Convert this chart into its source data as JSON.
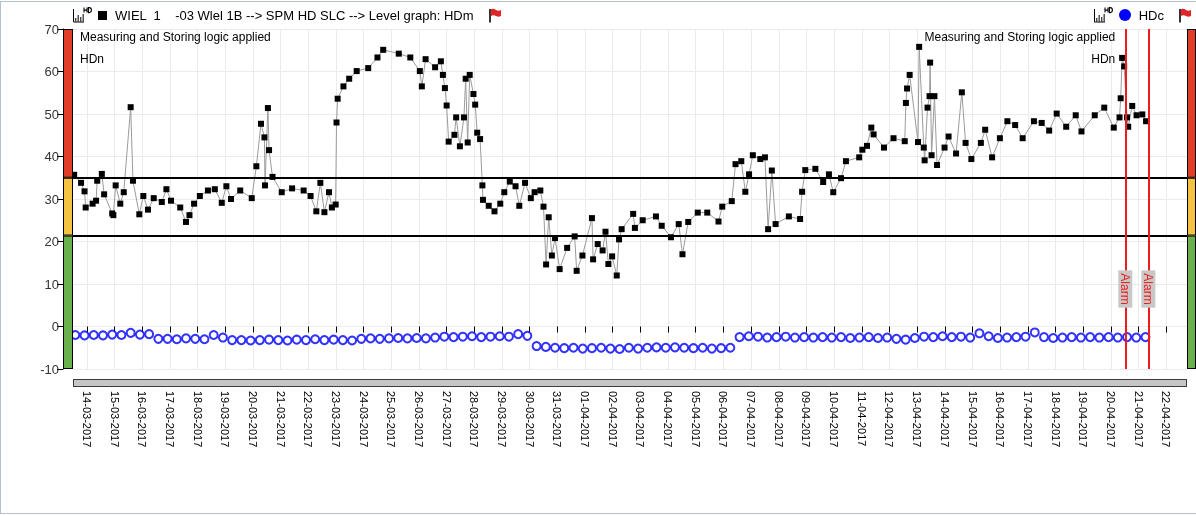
{
  "chart_data": {
    "type": "line",
    "series": [
      {
        "name": "WIEL  1    -03 Wlel 1B --> SPM HD SLC --> Level graph: HDm",
        "color": "#000000",
        "marker": "square",
        "x": [
          "2017-03-13T13:00",
          "2017-03-13T19:00",
          "2017-03-13T22:00",
          "2017-03-13T23:00",
          "2017-03-14T05:00",
          "2017-03-14T08:00",
          "2017-03-14T09:00",
          "2017-03-14T13:00",
          "2017-03-14T15:00",
          "2017-03-14T22:00",
          "2017-03-14T23:00",
          "2017-03-15T01:00",
          "2017-03-15T05:00",
          "2017-03-15T08:00",
          "2017-03-15T14:00",
          "2017-03-15T16:00",
          "2017-03-15T21:30",
          "2017-03-16T01:00",
          "2017-03-16T05:00",
          "2017-03-16T10:00",
          "2017-03-16T17:00",
          "2017-03-16T21:00",
          "2017-03-17T01:00",
          "2017-03-17T09:00",
          "2017-03-17T14:00",
          "2017-03-17T17:00",
          "2017-03-17T21:00",
          "2017-03-18T02:00",
          "2017-03-18T09:00",
          "2017-03-18T15:00",
          "2017-03-18T21:00",
          "2017-03-19T01:00",
          "2017-03-19T05:00",
          "2017-03-19T13:00",
          "2017-03-19T23:00",
          "2017-03-20T03:00",
          "2017-03-20T07:00",
          "2017-03-20T10:00",
          "2017-03-20T10:30",
          "2017-03-20T13:00",
          "2017-03-20T14:00",
          "2017-03-20T17:00",
          "2017-03-21T01:00",
          "2017-03-21T10:00",
          "2017-03-21T20:00",
          "2017-03-22T02:00",
          "2017-03-22T07:00",
          "2017-03-22T10:30",
          "2017-03-22T14:00",
          "2017-03-22T18:00",
          "2017-03-22T20:30",
          "2017-03-22T23:45",
          "2017-03-23T00:30",
          "2017-03-23T01:30",
          "2017-03-23T06:30",
          "2017-03-23T11:30",
          "2017-03-23T18:00",
          "2017-03-24T04:00",
          "2017-03-24T12:00",
          "2017-03-24T17:00",
          "2017-03-25T06:30",
          "2017-03-25T16:30",
          "2017-03-26T00:45",
          "2017-03-26T02:30",
          "2017-03-26T05:45",
          "2017-03-26T14:00",
          "2017-03-26T19:00",
          "2017-03-26T20:45",
          "2017-03-26T22:30",
          "2017-03-27T00:00",
          "2017-03-27T01:45",
          "2017-03-27T06:45",
          "2017-03-27T08:15",
          "2017-03-27T11:30",
          "2017-03-27T15:00",
          "2017-03-27T16:30",
          "2017-03-27T18:15",
          "2017-03-27T20:00",
          "2017-03-27T23:15",
          "2017-03-28T00:45",
          "2017-03-28T02:30",
          "2017-03-28T05:00",
          "2017-03-28T07:00",
          "2017-03-28T07:30",
          "2017-03-28T12:30",
          "2017-03-28T17:30",
          "2017-03-28T22:30",
          "2017-03-29T02:00",
          "2017-03-29T06:45",
          "2017-03-29T11:45",
          "2017-03-29T15:00",
          "2017-03-29T20:00",
          "2017-03-30T01:00",
          "2017-03-30T04:15",
          "2017-03-30T09:15",
          "2017-03-30T12:00",
          "2017-03-30T14:15",
          "2017-03-30T16:30",
          "2017-03-30T19:15",
          "2017-03-30T22:00",
          "2017-03-31T02:00",
          "2017-03-31T08:30",
          "2017-03-31T15:00",
          "2017-03-31T16:45",
          "2017-03-31T21:45",
          "2017-04-01T06:00",
          "2017-04-01T07:00",
          "2017-04-01T11:00",
          "2017-04-01T15:15",
          "2017-04-01T17:45",
          "2017-04-01T20:15",
          "2017-04-01T23:30",
          "2017-04-02T03:30",
          "2017-04-02T05:30",
          "2017-04-02T07:45",
          "2017-04-02T17:45",
          "2017-04-02T19:15",
          "2017-04-03T02:00",
          "2017-04-03T13:30",
          "2017-04-03T18:30",
          "2017-04-04T02:30",
          "2017-04-04T09:15",
          "2017-04-04T12:30",
          "2017-04-04T17:30",
          "2017-04-05T01:45",
          "2017-04-05T10:00",
          "2017-04-05T19:45",
          "2017-04-05T23:00",
          "2017-04-06T07:15",
          "2017-04-06T10:30",
          "2017-04-06T15:30",
          "2017-04-06T19:00",
          "2017-04-06T22:15",
          "2017-04-07T01:30",
          "2017-04-07T08:00",
          "2017-04-07T12:00",
          "2017-04-07T14:45",
          "2017-04-07T18:00",
          "2017-04-07T21:15",
          "2017-04-08T08:45",
          "2017-04-08T18:30",
          "2017-04-08T20:15",
          "2017-04-08T23:00",
          "2017-04-09T07:45",
          "2017-04-09T14:30",
          "2017-04-09T19:30",
          "2017-04-09T23:15",
          "2017-04-10T06:00",
          "2017-04-10T10:15",
          "2017-04-10T21:45",
          "2017-04-11T00:30",
          "2017-04-11T04:30",
          "2017-04-11T08:15",
          "2017-04-11T10:15",
          "2017-04-11T19:15",
          "2017-04-12T03:30",
          "2017-04-12T13:15",
          "2017-04-12T14:15",
          "2017-04-12T15:15",
          "2017-04-12T17:30",
          "2017-04-13T00:45",
          "2017-04-13T01:45",
          "2017-04-13T05:45",
          "2017-04-13T06:30",
          "2017-04-13T09:00",
          "2017-04-13T10:45",
          "2017-04-13T11:15",
          "2017-04-13T12:30",
          "2017-04-13T15:00",
          "2017-04-13T17:15",
          "2017-04-13T23:45",
          "2017-04-14T03:15",
          "2017-04-14T09:45",
          "2017-04-14T14:45",
          "2017-04-14T18:00",
          "2017-04-14T23:00",
          "2017-04-15T07:15",
          "2017-04-15T11:00",
          "2017-04-15T17:00",
          "2017-04-15T23:45",
          "2017-04-16T06:15",
          "2017-04-16T13:00",
          "2017-04-16T19:30",
          "2017-04-17T05:15",
          "2017-04-17T12:00",
          "2017-04-17T18:30",
          "2017-04-18T01:00",
          "2017-04-18T09:15",
          "2017-04-18T17:30",
          "2017-04-18T22:30",
          "2017-04-19T10:00",
          "2017-04-19T18:15",
          "2017-04-20T02:30",
          "2017-04-20T07:30",
          "2017-04-20T08:30",
          "2017-04-20T09:45",
          "2017-04-20T11:30",
          "2017-04-20T14:00",
          "2017-04-20T15:00",
          "2017-04-20T18:30",
          "2017-04-20T22:15",
          "2017-04-21T03:15",
          "2017-04-21T06:30"
        ],
        "values": [
          35.7,
          33.8,
          31.8,
          28.0,
          28.9,
          29.6,
          34.3,
          35.9,
          31.1,
          26.6,
          26.2,
          33.2,
          28.9,
          31.6,
          51.6,
          34.3,
          26.4,
          30.7,
          27.5,
          30.2,
          29.3,
          32.3,
          29.6,
          28.0,
          24.6,
          26.2,
          28.9,
          30.7,
          32.0,
          32.3,
          29.1,
          33.0,
          30.0,
          32.0,
          30.2,
          37.7,
          47.7,
          44.5,
          33.2,
          51.4,
          41.5,
          35.2,
          31.6,
          32.5,
          32.0,
          30.7,
          27.1,
          33.8,
          26.9,
          31.6,
          28.0,
          28.7,
          48.0,
          53.6,
          56.5,
          58.3,
          60.1,
          60.8,
          63.3,
          65.1,
          64.2,
          63.3,
          60.1,
          56.5,
          62.9,
          61.0,
          62.4,
          59.2,
          56.1,
          52.0,
          43.5,
          45.1,
          49.2,
          42.4,
          49.2,
          58.3,
          43.3,
          59.2,
          54.7,
          52.2,
          45.6,
          44.1,
          33.2,
          29.8,
          28.4,
          27.1,
          28.9,
          31.6,
          34.1,
          33.0,
          28.4,
          33.8,
          30.2,
          31.6,
          32.0,
          28.2,
          14.6,
          25.7,
          16.7,
          20.8,
          13.5,
          18.5,
          21.2,
          13.1,
          16.7,
          25.5,
          15.8,
          19.4,
          17.9,
          22.3,
          14.7,
          16.5,
          12.0,
          20.5,
          22.9,
          26.5,
          23.2,
          25.0,
          25.9,
          23.7,
          21.0,
          24.1,
          17.0,
          24.6,
          26.8,
          26.8,
          24.7,
          28.2,
          29.5,
          38.2,
          38.9,
          31.7,
          35.8,
          40.3,
          39.4,
          39.8,
          22.9,
          36.7,
          24.1,
          25.9,
          25.3,
          31.7,
          36.8,
          37.1,
          34.0,
          35.8,
          31.6,
          34.9,
          38.9,
          39.8,
          41.6,
          42.5,
          46.8,
          45.2,
          42.1,
          44.3,
          43.6,
          52.6,
          56.0,
          59.2,
          43.4,
          65.8,
          42.1,
          39.1,
          51.5,
          54.2,
          62.1,
          40.3,
          54.2,
          38.0,
          42.1,
          44.7,
          40.7,
          55.1,
          43.2,
          39.4,
          43.2,
          46.3,
          39.8,
          44.3,
          48.3,
          47.4,
          44.3,
          48.3,
          47.9,
          46.1,
          50.1,
          47.0,
          49.7,
          45.9,
          49.7,
          51.5,
          46.8,
          49.2,
          53.7,
          63.2,
          61.2,
          49.2,
          47.0,
          51.9,
          49.7,
          49.9,
          48.3
        ]
      },
      {
        "name": "HDc",
        "type": "scatter",
        "color": "#0000ff",
        "marker": "circle",
        "x": [
          "2017-03-13T14:00",
          "2017-03-13T22:00",
          "2017-03-14T06:00",
          "2017-03-14T14:00",
          "2017-03-14T22:00",
          "2017-03-15T06:00",
          "2017-03-15T14:00",
          "2017-03-15T22:00",
          "2017-03-16T06:00",
          "2017-03-16T14:00",
          "2017-03-16T22:00",
          "2017-03-17T06:00",
          "2017-03-17T14:00",
          "2017-03-17T22:00",
          "2017-03-18T06:00",
          "2017-03-18T14:00",
          "2017-03-18T22:00",
          "2017-03-19T06:00",
          "2017-03-19T14:00",
          "2017-03-19T22:00",
          "2017-03-20T06:00",
          "2017-03-20T14:00",
          "2017-03-20T22:00",
          "2017-03-21T06:00",
          "2017-03-21T14:00",
          "2017-03-21T22:00",
          "2017-03-22T06:00",
          "2017-03-22T14:00",
          "2017-03-22T22:00",
          "2017-03-23T06:00",
          "2017-03-23T14:00",
          "2017-03-23T22:00",
          "2017-03-24T06:00",
          "2017-03-24T14:00",
          "2017-03-24T22:00",
          "2017-03-25T06:00",
          "2017-03-25T14:00",
          "2017-03-25T22:00",
          "2017-03-26T06:00",
          "2017-03-26T14:00",
          "2017-03-26T22:00",
          "2017-03-27T06:00",
          "2017-03-27T14:00",
          "2017-03-27T22:00",
          "2017-03-28T06:00",
          "2017-03-28T14:00",
          "2017-03-28T22:00",
          "2017-03-29T06:00",
          "2017-03-29T14:00",
          "2017-03-29T22:00",
          "2017-03-30T06:00",
          "2017-03-30T14:00",
          "2017-03-30T22:00",
          "2017-03-31T06:00",
          "2017-03-31T14:00",
          "2017-03-31T22:00",
          "2017-04-01T06:00",
          "2017-04-01T14:00",
          "2017-04-01T22:00",
          "2017-04-02T06:00",
          "2017-04-02T14:00",
          "2017-04-02T22:00",
          "2017-04-03T06:00",
          "2017-04-03T14:00",
          "2017-04-03T22:00",
          "2017-04-04T06:00",
          "2017-04-04T14:00",
          "2017-04-04T22:00",
          "2017-04-05T06:00",
          "2017-04-05T14:00",
          "2017-04-05T22:00",
          "2017-04-06T06:00",
          "2017-04-06T14:00",
          "2017-04-06T22:00",
          "2017-04-07T06:00",
          "2017-04-07T14:00",
          "2017-04-07T22:00",
          "2017-04-08T06:00",
          "2017-04-08T14:00",
          "2017-04-08T22:00",
          "2017-04-09T06:00",
          "2017-04-09T14:00",
          "2017-04-09T22:00",
          "2017-04-10T06:00",
          "2017-04-10T14:00",
          "2017-04-10T22:00",
          "2017-04-11T06:00",
          "2017-04-11T14:00",
          "2017-04-11T22:00",
          "2017-04-12T06:00",
          "2017-04-12T14:00",
          "2017-04-12T22:00",
          "2017-04-13T06:00",
          "2017-04-13T14:00",
          "2017-04-13T22:00",
          "2017-04-14T06:00",
          "2017-04-14T14:00",
          "2017-04-14T22:00",
          "2017-04-15T06:00",
          "2017-04-15T14:00",
          "2017-04-15T22:00",
          "2017-04-16T06:00",
          "2017-04-16T14:00",
          "2017-04-16T22:00",
          "2017-04-17T06:00",
          "2017-04-17T14:00",
          "2017-04-17T22:00",
          "2017-04-18T06:00",
          "2017-04-18T14:00",
          "2017-04-18T22:00",
          "2017-04-19T06:00",
          "2017-04-19T14:00",
          "2017-04-19T22:00",
          "2017-04-20T06:00",
          "2017-04-20T14:00",
          "2017-04-20T22:00",
          "2017-04-21T06:00"
        ],
        "values": [
          -2.0,
          -2.1,
          -2.0,
          -2.1,
          -1.9,
          -2.0,
          -1.5,
          -1.9,
          -1.8,
          -2.9,
          -2.9,
          -3.0,
          -2.8,
          -2.9,
          -3.0,
          -2.0,
          -2.6,
          -3.2,
          -3.2,
          -3.3,
          -3.2,
          -3.1,
          -3.2,
          -3.3,
          -3.1,
          -3.2,
          -3.0,
          -3.2,
          -3.1,
          -3.2,
          -3.3,
          -2.9,
          -2.8,
          -2.9,
          -2.8,
          -2.7,
          -2.8,
          -2.7,
          -2.8,
          -2.6,
          -2.4,
          -2.5,
          -2.4,
          -2.3,
          -2.5,
          -2.4,
          -2.3,
          -2.4,
          -1.8,
          -2.2,
          -4.6,
          -4.8,
          -5.0,
          -5.1,
          -5.0,
          -5.2,
          -5.1,
          -5.0,
          -5.2,
          -5.3,
          -5.0,
          -5.2,
          -5.0,
          -4.9,
          -5.0,
          -4.9,
          -5.0,
          -5.1,
          -5.0,
          -5.2,
          -5.1,
          -5.0,
          -2.5,
          -2.3,
          -2.4,
          -2.6,
          -2.5,
          -2.4,
          -2.6,
          -2.5,
          -2.6,
          -2.5,
          -2.6,
          -2.5,
          -2.7,
          -2.6,
          -2.5,
          -2.7,
          -2.6,
          -2.9,
          -3.1,
          -2.7,
          -2.4,
          -2.5,
          -2.3,
          -2.5,
          -2.4,
          -2.6,
          -1.6,
          -2.3,
          -2.7,
          -2.6,
          -2.5,
          -2.4,
          -1.4,
          -2.5,
          -2.7,
          -2.6,
          -2.5,
          -2.6,
          -2.5,
          -2.6,
          -2.5,
          -2.6,
          -2.5,
          -2.6,
          -2.5
        ]
      }
    ],
    "xlim": [
      "2017-03-13T12:00",
      "2017-04-22T18:00"
    ],
    "xticks": [
      {
        "value": "2017-03-14",
        "label": "14-03-2017"
      },
      {
        "value": "2017-03-15",
        "label": "15-03-2017"
      },
      {
        "value": "2017-03-16",
        "label": "16-03-2017"
      },
      {
        "value": "2017-03-17",
        "label": "17-03-2017"
      },
      {
        "value": "2017-03-18",
        "label": "18-03-2017"
      },
      {
        "value": "2017-03-19",
        "label": "19-03-2017"
      },
      {
        "value": "2017-03-20",
        "label": "20-03-2017"
      },
      {
        "value": "2017-03-21",
        "label": "21-03-2017"
      },
      {
        "value": "2017-03-22",
        "label": "22-03-2017"
      },
      {
        "value": "2017-03-23",
        "label": "23-03-2017"
      },
      {
        "value": "2017-03-24",
        "label": "24-03-2017"
      },
      {
        "value": "2017-03-25",
        "label": "25-03-2017"
      },
      {
        "value": "2017-03-26",
        "label": "26-03-2017"
      },
      {
        "value": "2017-03-27",
        "label": "27-03-2017"
      },
      {
        "value": "2017-03-28",
        "label": "28-03-2017"
      },
      {
        "value": "2017-03-29",
        "label": "29-03-2017"
      },
      {
        "value": "2017-03-30",
        "label": "30-03-2017"
      },
      {
        "value": "2017-03-31",
        "label": "31-03-2017"
      },
      {
        "value": "2017-04-01",
        "label": "01-04-2017"
      },
      {
        "value": "2017-04-02",
        "label": "02-04-2017"
      },
      {
        "value": "2017-04-03",
        "label": "03-04-2017"
      },
      {
        "value": "2017-04-04",
        "label": "04-04-2017"
      },
      {
        "value": "2017-04-05",
        "label": "05-04-2017"
      },
      {
        "value": "2017-04-06",
        "label": "06-04-2017"
      },
      {
        "value": "2017-04-07",
        "label": "07-04-2017"
      },
      {
        "value": "2017-04-08",
        "label": "08-04-2017"
      },
      {
        "value": "2017-04-09",
        "label": "09-04-2017"
      },
      {
        "value": "2017-04-10",
        "label": "10-04-2017"
      },
      {
        "value": "2017-04-11",
        "label": "11-04-2017"
      },
      {
        "value": "2017-04-12",
        "label": "12-04-2017"
      },
      {
        "value": "2017-04-13",
        "label": "13-04-2017"
      },
      {
        "value": "2017-04-14",
        "label": "14-04-2017"
      },
      {
        "value": "2017-04-15",
        "label": "15-04-2017"
      },
      {
        "value": "2017-04-16",
        "label": "16-04-2017"
      },
      {
        "value": "2017-04-17",
        "label": "17-04-2017"
      },
      {
        "value": "2017-04-18",
        "label": "18-04-2017"
      },
      {
        "value": "2017-04-19",
        "label": "19-04-2017"
      },
      {
        "value": "2017-04-20",
        "label": "20-04-2017"
      },
      {
        "value": "2017-04-21",
        "label": "21-04-2017"
      },
      {
        "value": "2017-04-22",
        "label": "22-04-2017"
      }
    ],
    "ylim": [
      -10,
      70
    ],
    "yticks": [
      -10,
      0,
      10,
      20,
      30,
      40,
      50,
      60,
      70
    ],
    "grid": true,
    "legend": "top",
    "ref_lines": [
      {
        "axis": "y",
        "value": 35,
        "color": "#000000"
      },
      {
        "axis": "y",
        "value": 21.4,
        "color": "#000000"
      },
      {
        "axis": "x",
        "value": "2017-04-20T12:30",
        "label": "Alarm",
        "color": "#ee1c1c"
      },
      {
        "axis": "x",
        "value": "2017-04-21T08:30",
        "label": "Alarm",
        "color": "#ee1c1c"
      }
    ],
    "annotations": [
      "Measuring and Storing logic applied",
      "HDn",
      "Measuring and Storing logic applied",
      "HDn"
    ]
  }
}
